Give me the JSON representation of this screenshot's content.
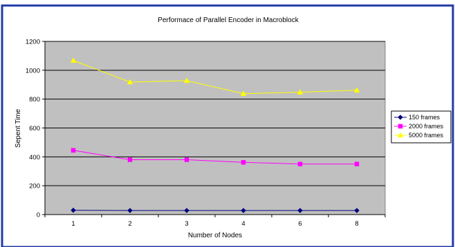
{
  "chart_data": {
    "type": "line",
    "title": "Performace of Parallel Encoder in Macroblock",
    "xlabel": "Number of Nodes",
    "ylabel": "Sepent Time",
    "categories": [
      "1",
      "2",
      "3",
      "4",
      "6",
      "8"
    ],
    "ylim": [
      0,
      1200
    ],
    "yticks": [
      0,
      200,
      400,
      600,
      800,
      1000,
      1200
    ],
    "grid": "horizontal",
    "legend": "right",
    "series": [
      {
        "name": "150 frames",
        "values": [
          30,
          28,
          28,
          28,
          28,
          28
        ],
        "color": "#000080",
        "marker": "diamond"
      },
      {
        "name": "2000 frames",
        "values": [
          445,
          380,
          380,
          362,
          350,
          350
        ],
        "color": "#ff00ff",
        "marker": "square"
      },
      {
        "name": "5000 frames",
        "values": [
          1068,
          918,
          928,
          838,
          848,
          862
        ],
        "color": "#ffff00",
        "marker": "triangle"
      }
    ],
    "plot_background": "#c0c0c0",
    "border_color": "#1f3aa8"
  }
}
